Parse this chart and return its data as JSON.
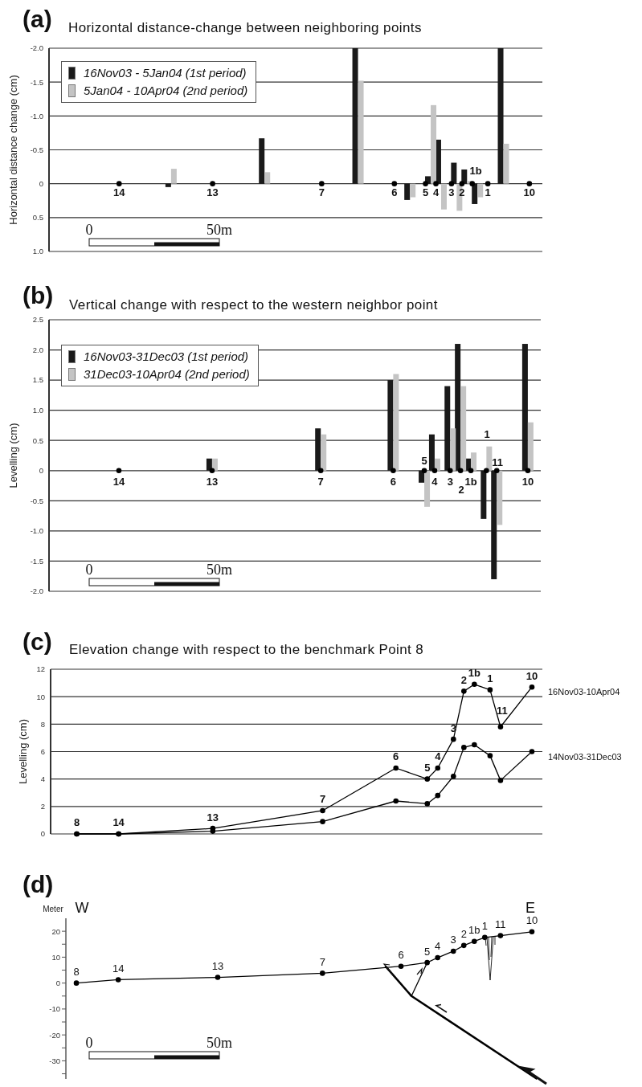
{
  "chart_data": [
    {
      "type": "bar",
      "title": "Horizontal distance-change between neighboring points",
      "ylabel": "Horizontal distance change (cm)",
      "ylim": [
        1.0,
        -2.0
      ],
      "yticks": [
        {
          "value": -2,
          "label": "-2.0"
        },
        -1.5,
        {
          "value": -1,
          "label": "-1.0"
        },
        -0.5,
        0,
        0.5,
        {
          "value": 1,
          "label": "1.0"
        }
      ],
      "grid": "y",
      "legend": "top left",
      "marker": "circle",
      "categories": [
        null,
        null,
        null,
        null,
        null,
        null,
        null,
        null,
        null,
        null,
        null,
        null,
        null,
        "14",
        null,
        null,
        null,
        null,
        null,
        null,
        null,
        null,
        null,
        null,
        null,
        null,
        null,
        null,
        null,
        null,
        null,
        "13",
        null,
        null,
        null,
        null,
        null,
        null,
        null,
        null,
        null,
        null,
        null,
        null,
        null,
        null,
        null,
        null,
        null,
        null,
        null,
        null,
        "7",
        null,
        null,
        null,
        null,
        null,
        null,
        null,
        null,
        null,
        null,
        null,
        null,
        null,
        "6",
        null,
        null,
        null,
        null,
        null,
        "5",
        null,
        "4",
        null,
        null,
        "3",
        null,
        "2",
        null,
        null,
        null,
        null,
        "1",
        null,
        null,
        null,
        null,
        null,
        null,
        null,
        "10",
        null,
        null
      ],
      "series": [
        {
          "name": "16Nov03 - 5Jan04 (1st period)",
          "color": "#1a1a1a",
          "values": [
            null,
            null,
            null,
            null,
            null,
            null,
            null,
            null,
            null,
            null,
            null,
            null,
            null,
            null,
            null,
            null,
            null,
            null,
            null,
            null,
            null,
            null,
            null,
            0.05,
            null,
            null,
            null,
            null,
            null,
            null,
            null,
            null,
            null,
            null,
            null,
            null,
            null,
            null,
            null,
            null,
            null,
            -0.67,
            null,
            null,
            null,
            null,
            null,
            null,
            null,
            null,
            null,
            null,
            null,
            null,
            null,
            null,
            null,
            null,
            null,
            -2.0,
            null,
            null,
            null,
            null,
            null,
            null,
            null,
            null,
            null,
            0.24,
            null,
            null,
            null,
            -0.11,
            null,
            -0.65,
            null,
            null,
            -0.31,
            null,
            -0.21,
            null,
            0.3,
            null,
            null,
            null,
            null,
            -2.0,
            null,
            null,
            null,
            null,
            null,
            null,
            null
          ]
        },
        {
          "name": "5Jan04 - 10Apr04 (2nd period)",
          "color": "#c4c4c4",
          "values": [
            null,
            null,
            null,
            null,
            null,
            null,
            null,
            null,
            null,
            null,
            null,
            null,
            null,
            null,
            null,
            null,
            null,
            null,
            null,
            null,
            null,
            null,
            null,
            -0.22,
            null,
            null,
            null,
            null,
            null,
            null,
            null,
            null,
            null,
            null,
            null,
            null,
            null,
            null,
            null,
            null,
            null,
            -0.17,
            null,
            null,
            null,
            null,
            null,
            null,
            null,
            null,
            null,
            null,
            null,
            null,
            null,
            null,
            null,
            null,
            null,
            -1.52,
            null,
            null,
            null,
            null,
            null,
            null,
            null,
            null,
            null,
            0.2,
            null,
            null,
            null,
            -1.16,
            null,
            0.38,
            null,
            null,
            0.4,
            null,
            -0.04,
            null,
            0.2,
            null,
            null,
            null,
            null,
            -0.59,
            null,
            null,
            null,
            null,
            null,
            null,
            null
          ]
        },
        {
          "type": "scatter",
          "color": "#000000",
          "values": [
            null,
            null,
            null,
            null,
            null,
            null,
            null,
            null,
            null,
            null,
            null,
            null,
            null,
            0,
            null,
            null,
            null,
            null,
            null,
            null,
            null,
            null,
            null,
            null,
            null,
            null,
            null,
            null,
            null,
            null,
            null,
            0,
            null,
            null,
            null,
            null,
            null,
            null,
            null,
            null,
            null,
            null,
            null,
            null,
            null,
            null,
            null,
            null,
            null,
            null,
            null,
            null,
            0,
            null,
            null,
            null,
            null,
            null,
            null,
            null,
            null,
            null,
            null,
            null,
            null,
            null,
            0,
            null,
            null,
            null,
            null,
            null,
            0,
            null,
            0,
            null,
            null,
            0,
            null,
            0,
            null,
            0,
            null,
            null,
            0,
            null,
            null,
            null,
            null,
            null,
            null,
            null,
            0,
            null,
            null
          ]
        }
      ],
      "annotations": [
        "(a)",
        "1b",
        "0",
        "50m"
      ]
    },
    {
      "type": "bar",
      "title": "Vertical change with respect to the western neighbor point",
      "ylabel": "Levelling (cm)",
      "ylim": [
        -2.0,
        2.5
      ],
      "yticks": [
        {
          "value": -2,
          "label": "-2.0"
        },
        -1.5,
        {
          "value": -1,
          "label": "-1.0"
        },
        -0.5,
        0,
        0.5,
        {
          "value": 1,
          "label": "1.0"
        },
        1.5,
        {
          "value": 2,
          "label": "2.0"
        },
        2.5
      ],
      "grid": "y",
      "legend": "top left",
      "marker": "circle",
      "categories": [
        null,
        null,
        null,
        null,
        null,
        null,
        null,
        null,
        null,
        null,
        null,
        null,
        null,
        "14",
        null,
        null,
        null,
        null,
        null,
        null,
        null,
        null,
        null,
        null,
        null,
        null,
        null,
        null,
        null,
        null,
        null,
        "13",
        null,
        null,
        null,
        null,
        null,
        null,
        null,
        null,
        null,
        null,
        null,
        null,
        null,
        null,
        null,
        null,
        null,
        null,
        null,
        null,
        "7",
        null,
        null,
        null,
        null,
        null,
        null,
        null,
        null,
        null,
        null,
        null,
        null,
        null,
        "6",
        null,
        null,
        null,
        null,
        null,
        null,
        null,
        "4",
        null,
        null,
        "3",
        null,
        null,
        null,
        "1b",
        null,
        null,
        null,
        null,
        null,
        null,
        null,
        null,
        null,
        null,
        "10",
        null,
        null
      ],
      "series": [
        {
          "name": "16Nov03-31Dec03 (1st period)",
          "color": "#1a1a1a",
          "values": [
            null,
            null,
            null,
            null,
            null,
            null,
            null,
            null,
            null,
            null,
            null,
            null,
            null,
            null,
            null,
            null,
            null,
            null,
            null,
            null,
            null,
            null,
            null,
            null,
            null,
            null,
            null,
            null,
            null,
            null,
            null,
            0.2,
            null,
            null,
            null,
            null,
            null,
            null,
            null,
            null,
            null,
            null,
            null,
            null,
            null,
            null,
            null,
            null,
            null,
            null,
            null,
            null,
            0.7,
            null,
            null,
            null,
            null,
            null,
            null,
            null,
            null,
            null,
            null,
            null,
            null,
            null,
            1.5,
            null,
            null,
            null,
            null,
            null,
            -0.2,
            null,
            0.6,
            null,
            null,
            1.4,
            null,
            2.1,
            null,
            0.2,
            null,
            null,
            -0.8,
            null,
            -1.8,
            null,
            null,
            null,
            null,
            null,
            2.1,
            null,
            null
          ]
        },
        {
          "name": "31Dec03-10Apr04 (2nd period)",
          "color": "#c4c4c4",
          "values": [
            null,
            null,
            null,
            null,
            null,
            null,
            null,
            null,
            null,
            null,
            null,
            null,
            null,
            null,
            null,
            null,
            null,
            null,
            null,
            null,
            null,
            null,
            null,
            null,
            null,
            null,
            null,
            null,
            null,
            null,
            null,
            0.2,
            null,
            null,
            null,
            null,
            null,
            null,
            null,
            null,
            null,
            null,
            null,
            null,
            null,
            null,
            null,
            null,
            null,
            null,
            null,
            null,
            0.6,
            null,
            null,
            null,
            null,
            null,
            null,
            null,
            null,
            null,
            null,
            null,
            null,
            null,
            1.6,
            null,
            null,
            null,
            null,
            null,
            -0.6,
            null,
            0.2,
            null,
            null,
            0.7,
            null,
            1.4,
            null,
            0.3,
            null,
            null,
            0.4,
            null,
            -0.9,
            null,
            null,
            null,
            null,
            null,
            0.8,
            null,
            null
          ]
        },
        {
          "type": "scatter",
          "color": "#000000",
          "values": [
            null,
            null,
            null,
            null,
            null,
            null,
            null,
            null,
            null,
            null,
            null,
            null,
            null,
            0,
            null,
            null,
            null,
            null,
            null,
            null,
            null,
            null,
            null,
            null,
            null,
            null,
            null,
            null,
            null,
            null,
            null,
            0,
            null,
            null,
            null,
            null,
            null,
            null,
            null,
            null,
            null,
            null,
            null,
            null,
            null,
            null,
            null,
            null,
            null,
            null,
            null,
            null,
            0,
            null,
            null,
            null,
            null,
            null,
            null,
            null,
            null,
            null,
            null,
            null,
            null,
            null,
            0,
            null,
            null,
            null,
            null,
            null,
            0,
            null,
            0,
            null,
            null,
            0,
            null,
            0,
            null,
            0,
            null,
            null,
            0,
            null,
            0,
            null,
            null,
            null,
            null,
            null,
            0,
            null,
            null
          ]
        }
      ],
      "annotations": [
        "(b)",
        "5",
        "2",
        "1",
        "11",
        "0",
        "50m"
      ]
    },
    {
      "type": "line",
      "title": "Elevation change with respect to the benchmark Point 8",
      "ylabel": "Levelling (cm)",
      "ylim": [
        0,
        12
      ],
      "yticks": [
        0,
        2,
        4,
        6,
        8,
        10,
        12
      ],
      "grid": "y",
      "marker": "circle",
      "line_style": "solid",
      "categories": [
        null,
        null,
        null,
        null,
        null,
        "8",
        null,
        null,
        null,
        null,
        null,
        null,
        null,
        "14",
        null,
        null,
        null,
        null,
        null,
        null,
        null,
        null,
        null,
        null,
        null,
        null,
        null,
        null,
        null,
        null,
        null,
        "13",
        null,
        null,
        null,
        null,
        null,
        null,
        null,
        null,
        null,
        null,
        null,
        null,
        null,
        null,
        null,
        null,
        null,
        null,
        null,
        null,
        "7",
        null,
        null,
        null,
        null,
        null,
        null,
        null,
        null,
        null,
        null,
        null,
        null,
        null,
        "6",
        null,
        null,
        null,
        null,
        null,
        "5",
        null,
        "4",
        null,
        null,
        "3",
        null,
        "2",
        null,
        "1b",
        null,
        null,
        "1",
        null,
        "11",
        null,
        null,
        null,
        null,
        null,
        "10",
        null,
        null
      ],
      "series": [
        {
          "name": "16Nov03-10Apr04",
          "color": "#000000",
          "values": [
            null,
            null,
            null,
            null,
            null,
            0,
            null,
            null,
            null,
            null,
            null,
            null,
            null,
            0,
            null,
            null,
            null,
            null,
            null,
            null,
            null,
            null,
            null,
            null,
            null,
            null,
            null,
            null,
            null,
            null,
            null,
            0.4,
            null,
            null,
            null,
            null,
            null,
            null,
            null,
            null,
            null,
            null,
            null,
            null,
            null,
            null,
            null,
            null,
            null,
            null,
            null,
            null,
            1.7,
            null,
            null,
            null,
            null,
            null,
            null,
            null,
            null,
            null,
            null,
            null,
            null,
            null,
            4.8,
            null,
            null,
            null,
            null,
            null,
            4.0,
            null,
            4.8,
            null,
            null,
            6.9,
            null,
            10.4,
            null,
            10.9,
            null,
            null,
            10.5,
            null,
            7.8,
            null,
            null,
            null,
            null,
            null,
            10.7,
            null,
            null
          ]
        },
        {
          "name": "14Nov03-31Dec03",
          "color": "#000000",
          "values": [
            null,
            null,
            null,
            null,
            null,
            0,
            null,
            null,
            null,
            null,
            null,
            null,
            null,
            0,
            null,
            null,
            null,
            null,
            null,
            null,
            null,
            null,
            null,
            null,
            null,
            null,
            null,
            null,
            null,
            null,
            null,
            0.2,
            null,
            null,
            null,
            null,
            null,
            null,
            null,
            null,
            null,
            null,
            null,
            null,
            null,
            null,
            null,
            null,
            null,
            null,
            null,
            null,
            0.9,
            null,
            null,
            null,
            null,
            null,
            null,
            null,
            null,
            null,
            null,
            null,
            null,
            null,
            2.4,
            null,
            null,
            null,
            null,
            null,
            2.2,
            null,
            2.8,
            null,
            null,
            4.2,
            null,
            6.3,
            null,
            6.5,
            null,
            null,
            5.7,
            null,
            3.9,
            null,
            null,
            null,
            null,
            null,
            6.0,
            null,
            null
          ]
        }
      ],
      "annotations": [
        "(c)"
      ]
    },
    {
      "type": "line",
      "ylabel": "Meter",
      "ylim": [
        -37,
        25
      ],
      "yticks": [
        {
          "value": -35,
          "label": null
        },
        -30,
        {
          "value": -25,
          "label": null
        },
        -20,
        {
          "value": -15,
          "label": null
        },
        -10,
        {
          "value": -5,
          "label": null
        },
        0,
        {
          "value": 5,
          "label": null
        },
        10,
        {
          "value": 15,
          "label": null
        },
        20
      ],
      "marker": "circle",
      "line_style": "solid",
      "categories": [
        null,
        null,
        "8",
        null,
        null,
        null,
        null,
        null,
        null,
        null,
        "14",
        null,
        null,
        null,
        null,
        null,
        null,
        null,
        null,
        null,
        null,
        null,
        null,
        null,
        null,
        null,
        null,
        null,
        null,
        "13",
        null,
        null,
        null,
        null,
        null,
        null,
        null,
        null,
        null,
        null,
        null,
        null,
        null,
        null,
        null,
        null,
        null,
        null,
        null,
        "7",
        null,
        null,
        null,
        null,
        null,
        null,
        null,
        null,
        null,
        null,
        null,
        null,
        null,
        null,
        "6",
        null,
        null,
        null,
        null,
        "5",
        null,
        "4",
        null,
        null,
        "3",
        null,
        "2",
        null,
        "1b",
        null,
        "1",
        null,
        null,
        "11",
        null,
        null,
        null,
        null,
        null,
        "10",
        null,
        null
      ],
      "series": [
        {
          "color": "#000000",
          "values": [
            null,
            null,
            0,
            null,
            null,
            null,
            null,
            null,
            null,
            null,
            1.3,
            null,
            null,
            null,
            null,
            null,
            null,
            null,
            null,
            null,
            null,
            null,
            null,
            null,
            null,
            null,
            null,
            null,
            null,
            2.2,
            null,
            null,
            null,
            null,
            null,
            null,
            null,
            null,
            null,
            null,
            null,
            null,
            null,
            null,
            null,
            null,
            null,
            null,
            null,
            3.8,
            null,
            null,
            null,
            null,
            null,
            null,
            null,
            null,
            null,
            null,
            null,
            null,
            null,
            null,
            6.5,
            null,
            null,
            null,
            null,
            7.9,
            null,
            9.8,
            null,
            null,
            12.3,
            null,
            14.5,
            null,
            16.1,
            null,
            17.6,
            null,
            null,
            18.3,
            null,
            null,
            null,
            null,
            null,
            19.8,
            null,
            null
          ]
        },
        {
          "color": "#000000",
          "marker": "none",
          "values": [
            null,
            null,
            null,
            null,
            null,
            null,
            null,
            null,
            null,
            null,
            null,
            null,
            null,
            null,
            null,
            null,
            null,
            null,
            null,
            null,
            null,
            null,
            null,
            null,
            null,
            null,
            null,
            null,
            null,
            null,
            null,
            null,
            null,
            null,
            null,
            null,
            null,
            null,
            null,
            null,
            null,
            null,
            null,
            null,
            null,
            null,
            null,
            null,
            null,
            null,
            null,
            null,
            null,
            null,
            null,
            null,
            null,
            null,
            null,
            null,
            null,
            6.6,
            null,
            null,
            null,
            null,
            -5.0,
            null,
            null,
            null,
            null,
            null,
            null,
            null,
            null,
            null,
            null,
            null,
            null,
            null,
            null,
            null,
            null,
            null,
            null,
            null,
            null,
            null,
            null,
            null,
            -37,
            null
          ]
        },
        {
          "color": "#000000",
          "marker": "none",
          "values": [
            null,
            null,
            null,
            null,
            null,
            null,
            null,
            null,
            null,
            null,
            null,
            null,
            null,
            null,
            null,
            null,
            null,
            null,
            null,
            null,
            null,
            null,
            null,
            null,
            null,
            null,
            null,
            null,
            null,
            null,
            null,
            null,
            null,
            null,
            null,
            null,
            null,
            null,
            null,
            null,
            null,
            null,
            null,
            null,
            null,
            null,
            null,
            null,
            null,
            null,
            null,
            null,
            null,
            null,
            null,
            null,
            null,
            null,
            null,
            null,
            null,
            null,
            null,
            null,
            null,
            null,
            -5.0,
            null,
            null,
            7.9,
            null,
            null,
            null,
            null,
            null,
            null,
            null,
            null,
            null,
            null,
            null,
            null,
            null,
            null,
            null,
            null,
            null,
            null,
            null,
            null,
            null,
            null
          ]
        }
      ],
      "annotations": [
        "(d)",
        "W",
        "E",
        "0",
        "50m"
      ]
    }
  ]
}
